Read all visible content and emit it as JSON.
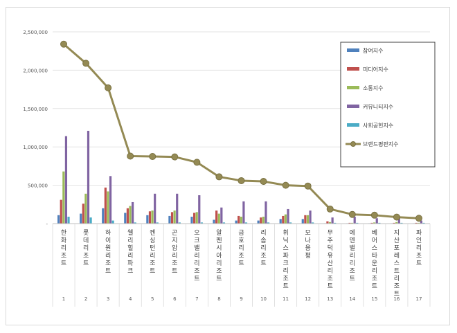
{
  "chart_data": {
    "type": "bar",
    "categories": [
      "한화리조트",
      "롯데리조트",
      "하이원리조트",
      "웰리힐리파크",
      "켄싱턴리조트",
      "곤지암리조트",
      "오크밸리리조트",
      "알펜시아리조트",
      "금호리조트",
      "리솜리조트",
      "휘닉스파크리조트",
      "모나용평",
      "무주덕유산리조트",
      "에덴밸리리조트",
      "베어스타운리조트",
      "지산포레스트리조트",
      "파인리조트"
    ],
    "ranks": [
      "1",
      "2",
      "3",
      "4",
      "5",
      "6",
      "7",
      "8",
      "9",
      "10",
      "11",
      "12",
      "13",
      "14",
      "15",
      "16",
      "17"
    ],
    "series": [
      {
        "name": "참여지수",
        "color": "#4f81bd",
        "values": [
          110000,
          130000,
          200000,
          140000,
          110000,
          100000,
          90000,
          50000,
          40000,
          40000,
          60000,
          60000,
          5000,
          5000,
          5000,
          5000,
          5000
        ]
      },
      {
        "name": "미디어지수",
        "color": "#c0504d",
        "values": [
          310000,
          260000,
          470000,
          200000,
          160000,
          150000,
          140000,
          170000,
          100000,
          80000,
          100000,
          110000,
          30000,
          10000,
          10000,
          10000,
          10000
        ]
      },
      {
        "name": "소통지수",
        "color": "#9bbb59",
        "values": [
          680000,
          390000,
          420000,
          230000,
          170000,
          170000,
          150000,
          130000,
          90000,
          90000,
          120000,
          110000,
          20000,
          10000,
          15000,
          20000,
          10000
        ]
      },
      {
        "name": "커뮤니티지수",
        "color": "#8064a2",
        "values": [
          1140000,
          1210000,
          620000,
          280000,
          390000,
          390000,
          370000,
          210000,
          290000,
          290000,
          190000,
          170000,
          80000,
          90000,
          70000,
          70000,
          40000
        ]
      },
      {
        "name": "사회공헌지수",
        "color": "#4bacc6",
        "values": [
          90000,
          80000,
          40000,
          15000,
          15000,
          15000,
          15000,
          15000,
          15000,
          15000,
          15000,
          15000,
          10000,
          10000,
          10000,
          10000,
          10000
        ]
      }
    ],
    "line_series": {
      "name": "브랜드평판지수",
      "color": "#948a54",
      "values": [
        2340000,
        2090000,
        1770000,
        880000,
        875000,
        870000,
        800000,
        610000,
        560000,
        550000,
        500000,
        490000,
        190000,
        120000,
        110000,
        85000,
        70000
      ]
    },
    "y_ticks": [
      "-",
      "500,000",
      "1,000,000",
      "1,500,000",
      "2,000,000",
      "2,500,000"
    ],
    "ylim": [
      0,
      2500000
    ],
    "grid": true,
    "legend_position": "top-right"
  }
}
